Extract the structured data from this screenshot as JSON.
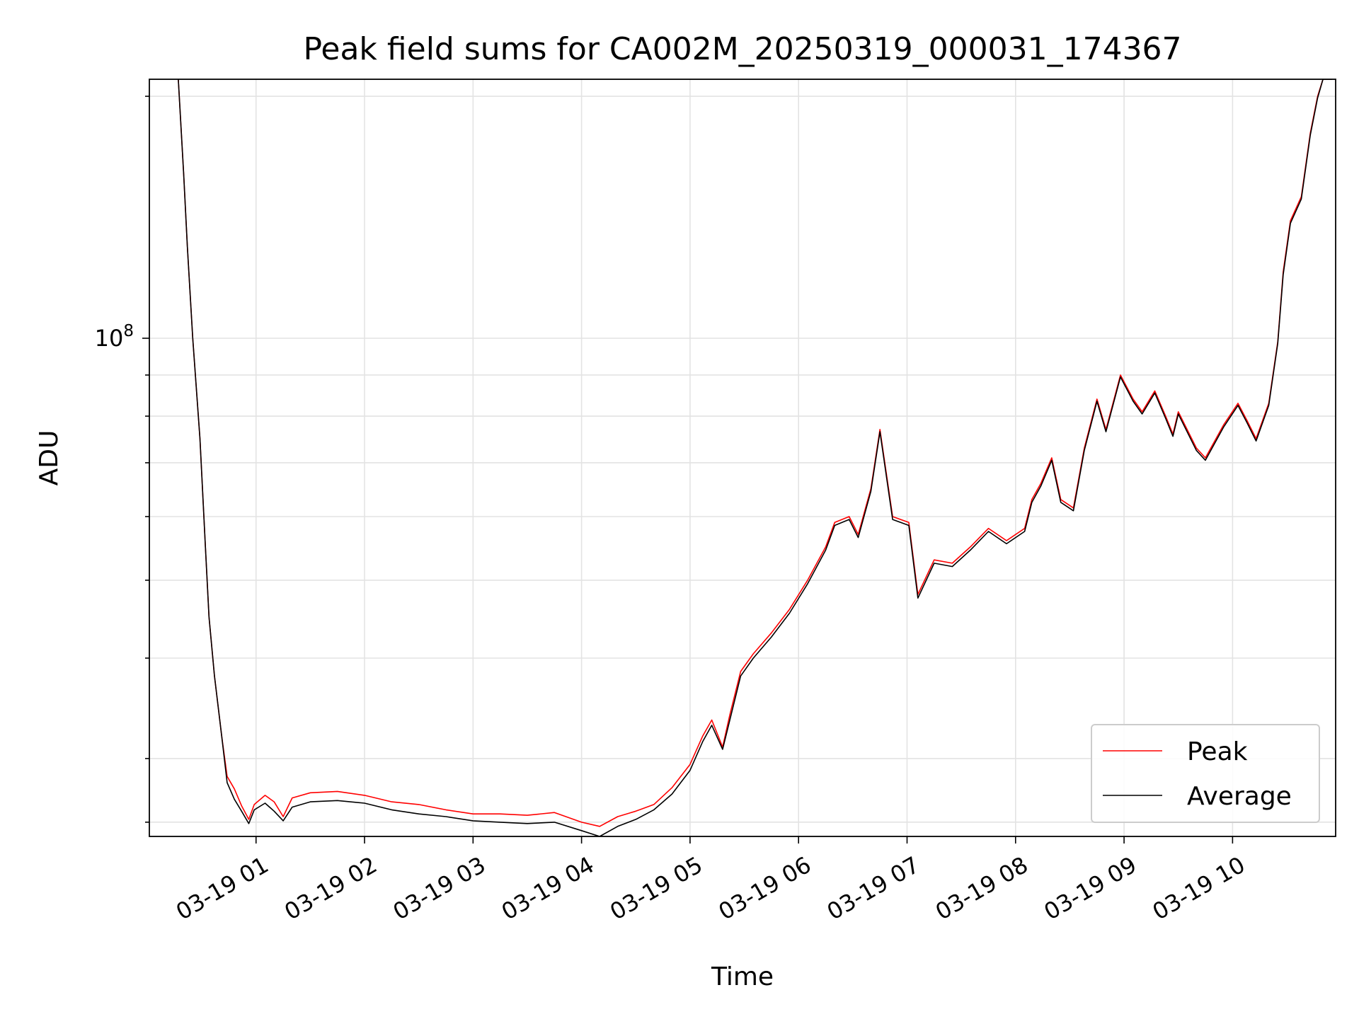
{
  "chart_data": {
    "type": "line",
    "title": "Peak field sums for CA002M_20250319_000031_174367",
    "xlabel": "Time",
    "ylabel": "ADU",
    "yscale": "log",
    "xlim": [
      "2025-03-19 00:01",
      "2025-03-19 10:57"
    ],
    "ylim": [
      24000000,
      210000000
    ],
    "grid": true,
    "legend_position": "lower-right",
    "x_ticks": [
      "03-19 01",
      "03-19 02",
      "03-19 03",
      "03-19 04",
      "03-19 05",
      "03-19 06",
      "03-19 07",
      "03-19 08",
      "03-19 09",
      "03-19 10"
    ],
    "y_major_ticks": [
      {
        "value": 100000000,
        "base": "10",
        "exp": "8"
      }
    ],
    "y_minor_ticks": [
      25000000,
      30000000,
      40000000,
      50000000,
      60000000,
      70000000,
      80000000,
      90000000,
      200000000
    ],
    "series": [
      {
        "name": "Peak",
        "color": "#ff0000",
        "x": [
          "00:17",
          "00:20",
          "00:22",
          "00:25",
          "00:29",
          "00:32",
          "00:34",
          "00:37",
          "00:41",
          "00:44",
          "00:48",
          "00:52",
          "00:56",
          "00:59",
          "01:05",
          "01:10",
          "01:15",
          "01:20",
          "01:30",
          "01:45",
          "02:00",
          "02:15",
          "02:30",
          "02:45",
          "03:00",
          "03:15",
          "03:30",
          "03:45",
          "04:00",
          "04:10",
          "04:20",
          "04:30",
          "04:40",
          "04:50",
          "05:00",
          "05:07",
          "05:12",
          "05:18",
          "05:22",
          "05:28",
          "05:35",
          "05:45",
          "05:55",
          "06:05",
          "06:15",
          "06:20",
          "06:28",
          "06:33",
          "06:40",
          "06:45",
          "06:52",
          "07:01",
          "07:06",
          "07:15",
          "07:25",
          "07:35",
          "07:45",
          "07:55",
          "08:05",
          "08:09",
          "08:14",
          "08:20",
          "08:25",
          "08:32",
          "08:38",
          "08:45",
          "08:50",
          "08:58",
          "09:05",
          "09:10",
          "09:17",
          "09:23",
          "09:27",
          "09:30",
          "09:40",
          "09:45",
          "09:55",
          "10:03",
          "10:08",
          "10:13",
          "10:20",
          "10:25",
          "10:28",
          "10:32",
          "10:38",
          "10:43",
          "10:47",
          "10:50",
          "10:53",
          "10:55"
        ],
        "y": [
          210000000,
          160000000,
          130000000,
          100000000,
          75000000,
          55000000,
          45000000,
          38000000,
          32000000,
          28500000,
          27500000,
          26200000,
          25200000,
          26300000,
          27000000,
          26500000,
          25400000,
          26800000,
          27200000,
          27300000,
          27000000,
          26500000,
          26300000,
          25900000,
          25600000,
          25600000,
          25500000,
          25700000,
          25000000,
          24700000,
          25400000,
          25800000,
          26300000,
          27600000,
          29500000,
          32000000,
          33500000,
          31000000,
          34000000,
          38500000,
          40500000,
          43000000,
          46000000,
          50000000,
          55000000,
          59000000,
          60000000,
          57000000,
          65000000,
          77000000,
          60000000,
          59000000,
          48000000,
          53000000,
          52500000,
          55000000,
          58000000,
          56000000,
          58000000,
          63000000,
          66000000,
          71000000,
          63000000,
          61500000,
          73000000,
          84000000,
          77000000,
          90000000,
          84000000,
          81000000,
          86000000,
          80000000,
          76000000,
          81000000,
          73000000,
          71000000,
          78000000,
          83000000,
          79000000,
          75000000,
          83000000,
          99000000,
          121000000,
          140000000,
          150000000,
          180000000,
          200000000,
          210000000,
          210000000,
          210000000
        ]
      },
      {
        "name": "Average",
        "color": "#000000",
        "x": [
          "00:17",
          "00:20",
          "00:22",
          "00:25",
          "00:29",
          "00:32",
          "00:34",
          "00:37",
          "00:41",
          "00:44",
          "00:48",
          "00:52",
          "00:56",
          "00:59",
          "01:05",
          "01:10",
          "01:15",
          "01:20",
          "01:30",
          "01:45",
          "02:00",
          "02:15",
          "02:30",
          "02:45",
          "03:00",
          "03:15",
          "03:30",
          "03:45",
          "04:00",
          "04:10",
          "04:20",
          "04:30",
          "04:40",
          "04:50",
          "05:00",
          "05:07",
          "05:12",
          "05:18",
          "05:22",
          "05:28",
          "05:35",
          "05:45",
          "05:55",
          "06:05",
          "06:15",
          "06:20",
          "06:28",
          "06:33",
          "06:40",
          "06:45",
          "06:52",
          "07:01",
          "07:06",
          "07:15",
          "07:25",
          "07:35",
          "07:45",
          "07:55",
          "08:05",
          "08:09",
          "08:14",
          "08:20",
          "08:25",
          "08:32",
          "08:38",
          "08:45",
          "08:50",
          "08:58",
          "09:05",
          "09:10",
          "09:17",
          "09:23",
          "09:27",
          "09:30",
          "09:40",
          "09:45",
          "09:55",
          "10:03",
          "10:08",
          "10:13",
          "10:20",
          "10:25",
          "10:28",
          "10:32",
          "10:38",
          "10:43",
          "10:47",
          "10:50",
          "10:53",
          "10:55"
        ],
        "y": [
          210000000,
          160000000,
          130000000,
          100000000,
          75000000,
          55000000,
          45000000,
          38000000,
          32000000,
          28000000,
          26700000,
          25800000,
          24900000,
          25900000,
          26400000,
          25800000,
          25100000,
          26100000,
          26500000,
          26600000,
          26400000,
          25900000,
          25600000,
          25400000,
          25100000,
          25000000,
          24900000,
          25000000,
          24400000,
          24000000,
          24700000,
          25200000,
          25900000,
          27100000,
          29000000,
          31500000,
          33000000,
          30800000,
          33500000,
          38000000,
          40000000,
          42500000,
          45500000,
          49500000,
          54500000,
          58500000,
          59500000,
          56500000,
          64500000,
          76500000,
          59500000,
          58500000,
          47500000,
          52500000,
          52000000,
          54500000,
          57500000,
          55500000,
          57500000,
          62500000,
          65500000,
          70500000,
          62500000,
          61000000,
          72500000,
          83500000,
          76500000,
          89500000,
          83500000,
          80500000,
          85500000,
          79500000,
          75500000,
          80500000,
          72500000,
          70500000,
          77500000,
          82500000,
          78500000,
          74500000,
          82500000,
          98500000,
          120000000,
          139000000,
          149000000,
          179000000,
          199000000,
          210000000,
          210000000,
          210000000
        ]
      }
    ]
  }
}
